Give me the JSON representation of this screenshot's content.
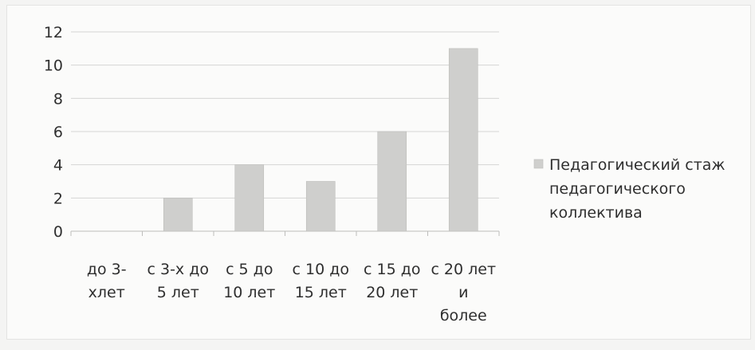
{
  "chart_data": {
    "type": "bar",
    "categories": [
      [
        "до 3-",
        "хлет"
      ],
      [
        "с 3-х до",
        "5 лет"
      ],
      [
        "с 5 до",
        "10 лет"
      ],
      [
        "с 10 до",
        "15 лет"
      ],
      [
        "с 15 до",
        "20 лет"
      ],
      [
        "с 20 лет",
        "и",
        "более"
      ]
    ],
    "series": [
      {
        "name": "Педагогический стаж педагогического коллектива",
        "values": [
          0,
          2,
          4,
          3,
          6,
          11
        ]
      }
    ],
    "ylim": [
      0,
      12
    ],
    "yticks": [
      0,
      2,
      4,
      6,
      8,
      10,
      12
    ],
    "grid": true,
    "legend": {
      "position": "right",
      "lines": [
        "Педагогический стаж",
        "педагогического",
        "коллектива"
      ]
    },
    "colors": {
      "bar": "#cfcfcd",
      "bar_edge": "#bdbdbb",
      "grid": "#d6d6d4",
      "axis": "#bdbdbb",
      "text": "#2f2f2f"
    }
  }
}
